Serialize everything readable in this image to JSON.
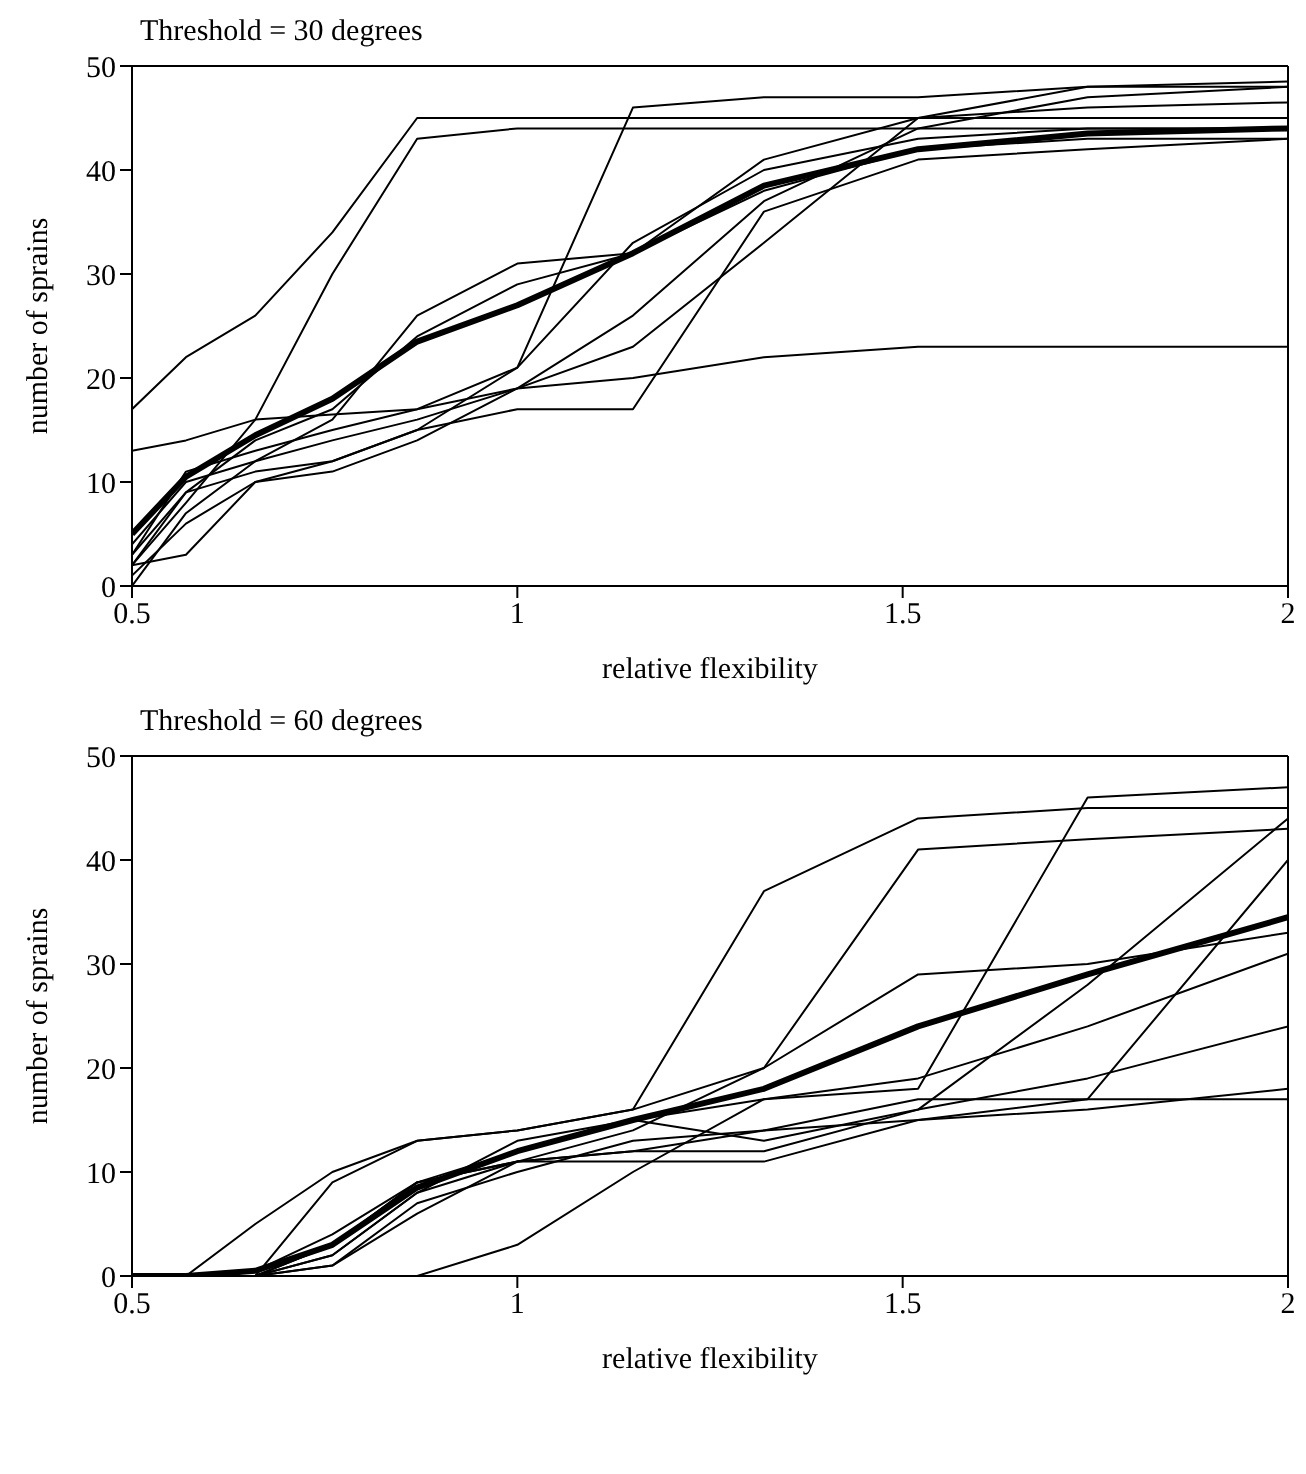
{
  "chart_data": [
    {
      "type": "line",
      "title": "Threshold = 30 degrees",
      "xlabel": "relative flexibility",
      "ylabel": "number of sprains",
      "x": [
        0.5,
        0.57,
        0.66,
        0.76,
        0.87,
        1,
        1.15,
        1.32,
        1.52,
        1.74,
        2
      ],
      "xlim": [
        0.5,
        2
      ],
      "xticks": [
        0.5,
        1,
        1.5,
        2
      ],
      "ylim": [
        0,
        50
      ],
      "yticks": [
        0,
        10,
        20,
        30,
        40,
        50
      ],
      "grid": false,
      "legend": false,
      "marker": "none",
      "line_style": "solid",
      "series": [
        {
          "color": "#000000",
          "values": [
            5,
            10.5,
            14.5,
            18,
            23.5,
            27,
            32,
            38.5,
            42,
            43.5,
            44
          ]
        },
        {
          "color": "#000000",
          "values": [
            17,
            22,
            26,
            34,
            45,
            45,
            45,
            45,
            45,
            45,
            45
          ]
        },
        {
          "color": "#000000",
          "values": [
            2,
            8,
            16,
            30,
            43,
            44,
            44,
            44,
            44,
            44,
            44
          ]
        },
        {
          "color": "#000000",
          "values": [
            3,
            11,
            13,
            15,
            17,
            21,
            46,
            47,
            47,
            48,
            48.5
          ]
        },
        {
          "color": "#000000",
          "values": [
            2,
            3,
            10,
            11,
            14,
            19,
            23,
            33,
            45,
            48,
            48
          ]
        },
        {
          "color": "#000000",
          "values": [
            13,
            14,
            16,
            16.5,
            17,
            19,
            20,
            22,
            23,
            23,
            23
          ]
        },
        {
          "color": "#000000",
          "values": [
            0,
            7,
            12,
            14,
            16,
            19,
            26,
            37,
            44,
            47,
            48
          ]
        },
        {
          "color": "#000000",
          "values": [
            4,
            10,
            12,
            16,
            26,
            31,
            32,
            38,
            42,
            43,
            43
          ]
        },
        {
          "color": "#000000",
          "values": [
            2,
            9,
            14,
            17,
            24,
            29,
            32,
            41,
            45,
            46,
            46.5
          ]
        },
        {
          "color": "#000000",
          "values": [
            1,
            6,
            10,
            12,
            15,
            21,
            33,
            40,
            43,
            44,
            44
          ]
        },
        {
          "color": "#000000",
          "values": [
            3,
            9,
            11,
            12,
            15,
            17,
            17,
            36,
            41,
            42,
            43
          ]
        }
      ]
    },
    {
      "type": "line",
      "title": "Threshold = 60 degrees",
      "xlabel": "relative flexibility",
      "ylabel": "number of sprains",
      "x": [
        0.5,
        0.57,
        0.66,
        0.76,
        0.87,
        1,
        1.15,
        1.32,
        1.52,
        1.74,
        2
      ],
      "xlim": [
        0.5,
        2
      ],
      "xticks": [
        0.5,
        1,
        1.5,
        2
      ],
      "ylim": [
        0,
        50
      ],
      "yticks": [
        0,
        10,
        20,
        30,
        40,
        50
      ],
      "grid": false,
      "legend": false,
      "marker": "none",
      "line_style": "solid",
      "series": [
        {
          "color": "#000000",
          "values": [
            0,
            0,
            0.5,
            3,
            8.5,
            12,
            15,
            18,
            24,
            29,
            34.5
          ]
        },
        {
          "color": "#000000",
          "values": [
            0,
            0,
            5,
            10,
            13,
            14,
            16,
            37,
            44,
            45,
            45
          ]
        },
        {
          "color": "#000000",
          "values": [
            0,
            0,
            0,
            9,
            13,
            14,
            16,
            20,
            41,
            42,
            43
          ]
        },
        {
          "color": "#000000",
          "values": [
            0,
            0,
            0,
            3,
            9,
            12,
            15,
            17,
            18,
            46,
            47
          ]
        },
        {
          "color": "#000000",
          "values": [
            0,
            0,
            0.5,
            4,
            9,
            11,
            14,
            20,
            29,
            30,
            33
          ]
        },
        {
          "color": "#000000",
          "values": [
            0,
            0,
            0,
            2,
            8,
            13,
            15,
            13,
            16,
            28,
            44
          ]
        },
        {
          "color": "#000000",
          "values": [
            0,
            0,
            0,
            0,
            0,
            3,
            10,
            17,
            19,
            24,
            31
          ]
        },
        {
          "color": "#000000",
          "values": [
            0,
            0,
            0,
            1,
            7,
            10,
            13,
            14,
            17,
            17,
            40
          ]
        },
        {
          "color": "#000000",
          "values": [
            0,
            0,
            0,
            2,
            8,
            11,
            12,
            12,
            16,
            19,
            24
          ]
        },
        {
          "color": "#000000",
          "values": [
            0,
            0,
            0,
            1,
            6,
            11,
            12,
            14,
            15,
            16,
            18
          ]
        },
        {
          "color": "#000000",
          "values": [
            0,
            0,
            0,
            3,
            9,
            11,
            11,
            11,
            15,
            17,
            17
          ]
        }
      ]
    }
  ]
}
